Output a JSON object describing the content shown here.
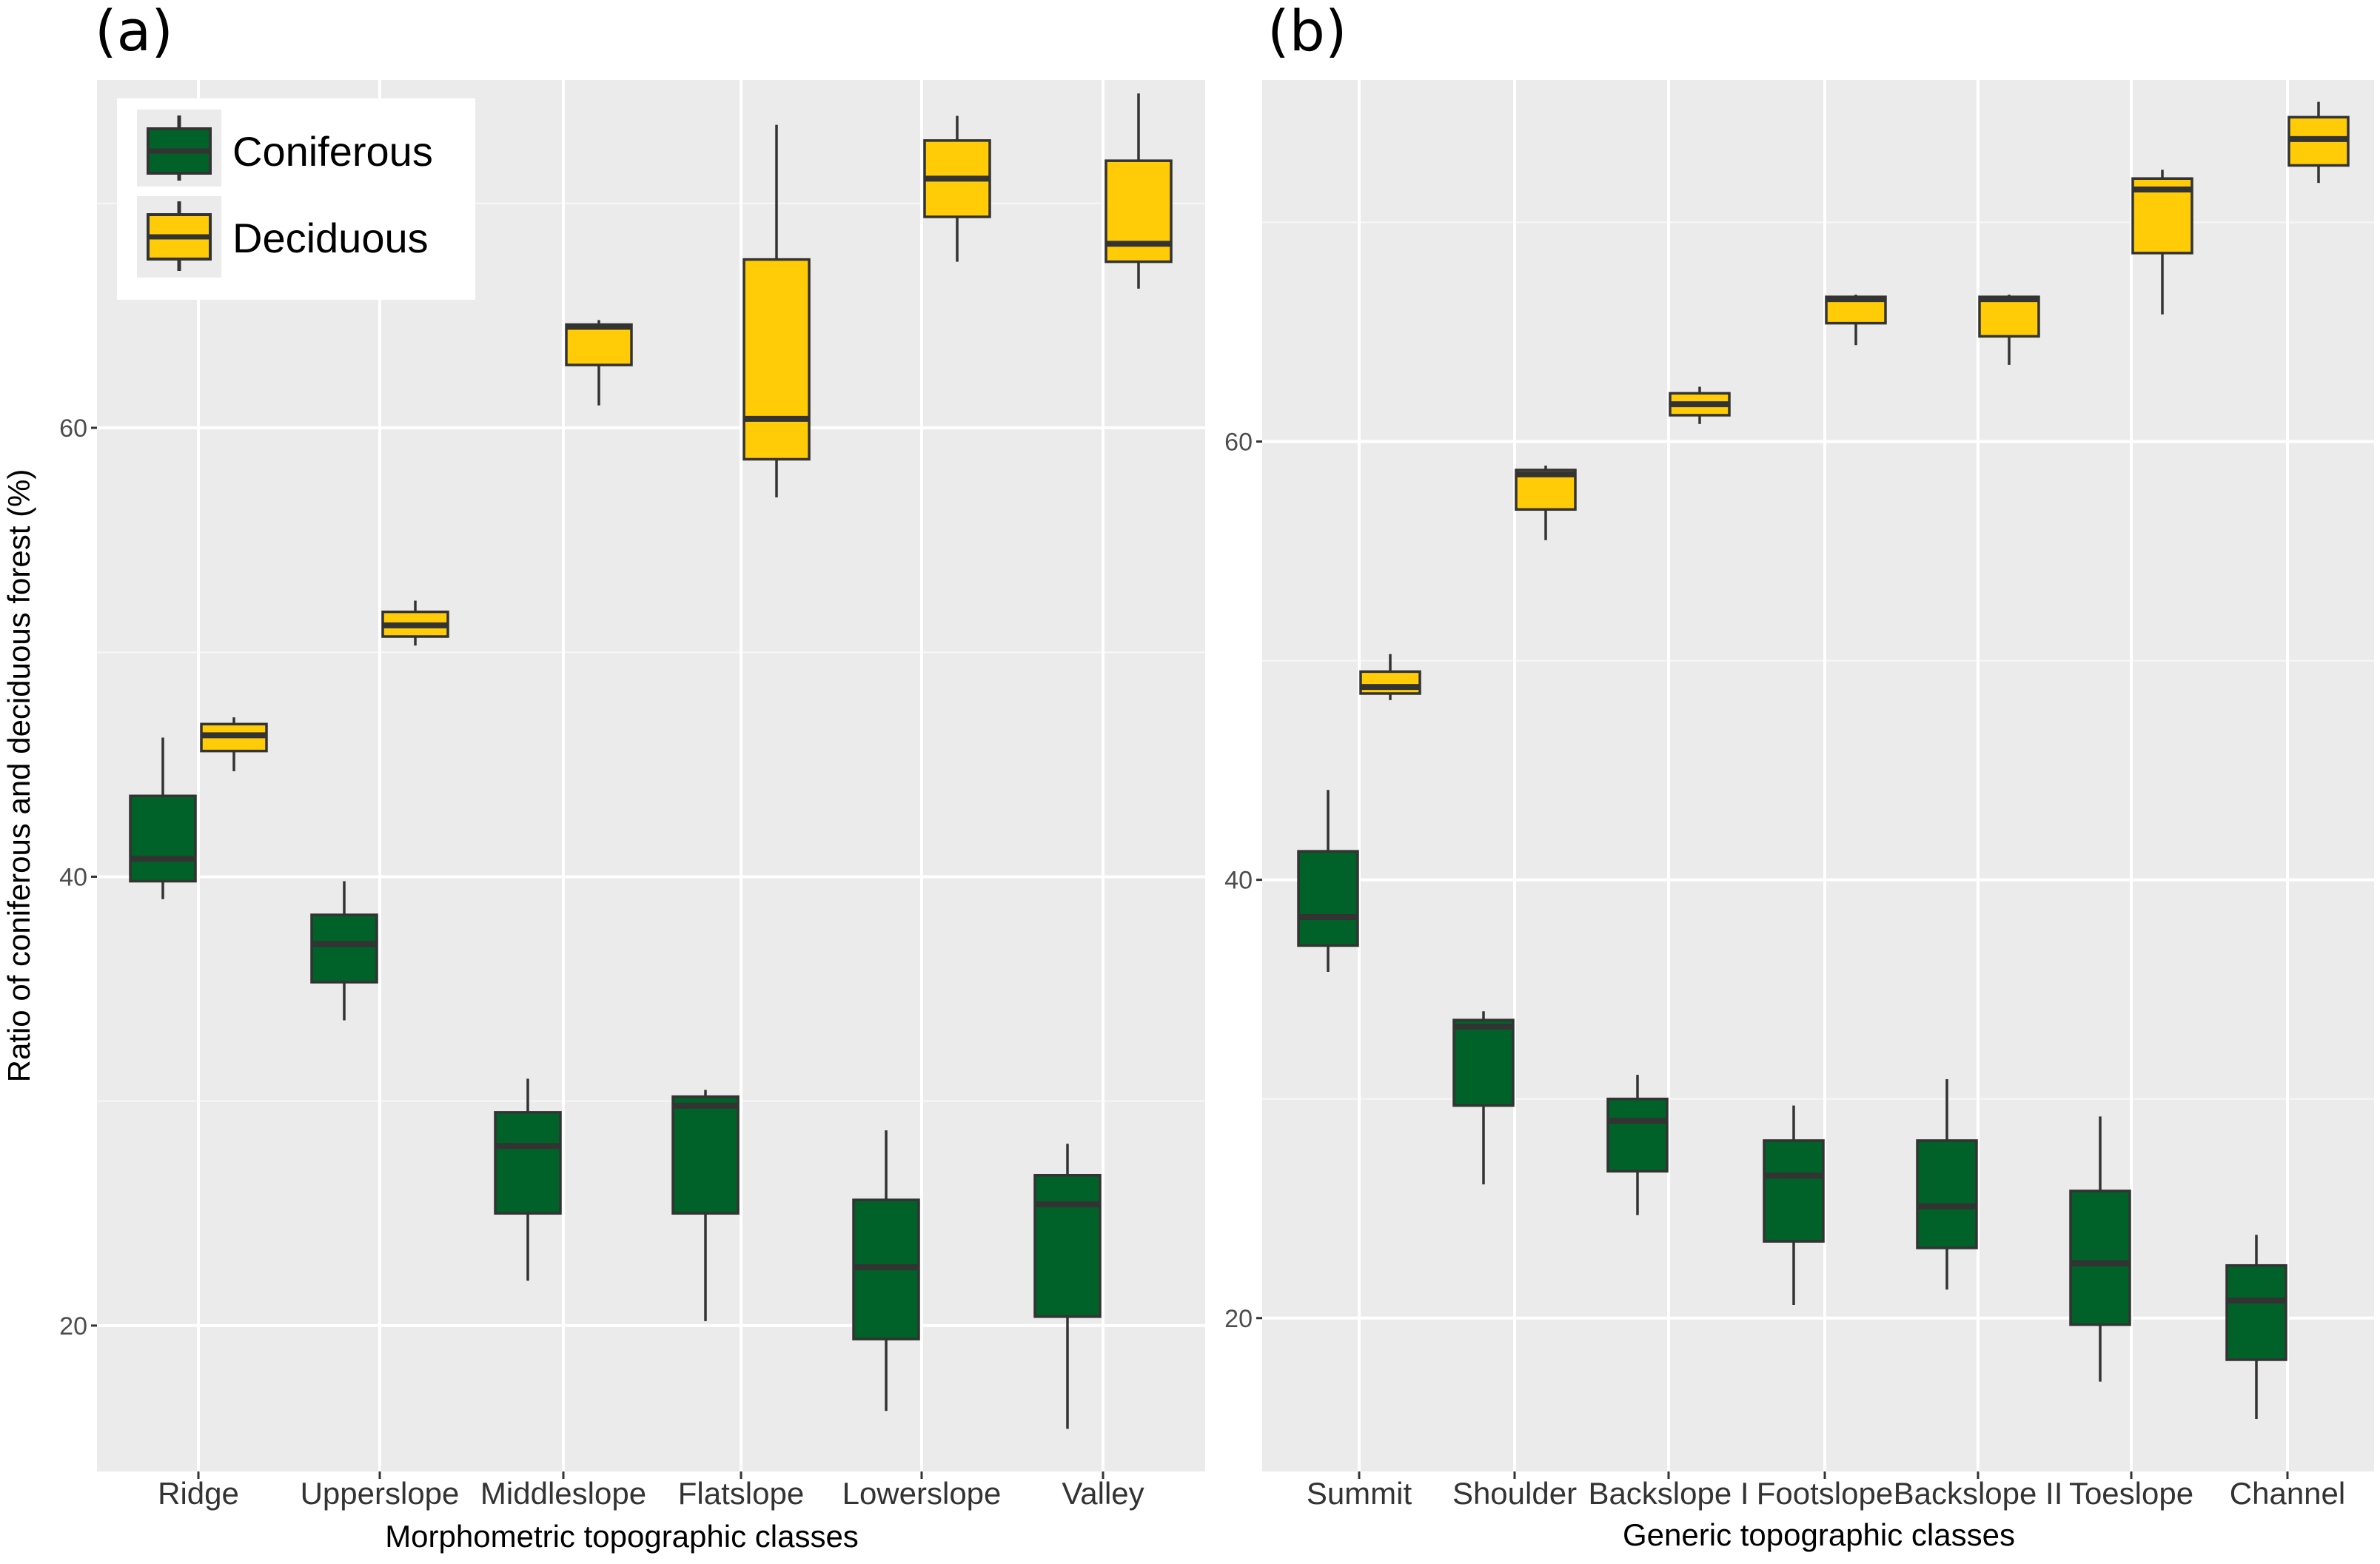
{
  "ylabel": "Ratio of coniferous and deciduous forest (%)",
  "legend": {
    "placement": "top-left inside panel (a)",
    "items": [
      {
        "label": "Coniferous",
        "color": "#006228"
      },
      {
        "label": "Deciduous",
        "color": "#ffcc07"
      }
    ]
  },
  "chart_data": [
    {
      "type": "boxplot",
      "panel": "(a)",
      "xlabel": "Morphometric topographic classes",
      "ylim": [
        13.5,
        75.5
      ],
      "yticks": [
        20,
        40,
        60
      ],
      "grid": true,
      "categories": [
        "Ridge",
        "Upperslope",
        "Middleslope",
        "Flatslope",
        "Lowerslope",
        "Valley"
      ],
      "series": [
        {
          "name": "Coniferous",
          "color": "#006228",
          "boxes": [
            {
              "min": 39.0,
              "q1": 39.8,
              "median": 40.8,
              "q3": 43.6,
              "max": 46.2
            },
            {
              "min": 33.6,
              "q1": 35.3,
              "median": 37.0,
              "q3": 38.3,
              "max": 39.8
            },
            {
              "min": 22.0,
              "q1": 25.0,
              "median": 28.0,
              "q3": 29.5,
              "max": 31.0
            },
            {
              "min": 20.2,
              "q1": 25.0,
              "median": 29.8,
              "q3": 30.2,
              "max": 30.5
            },
            {
              "min": 16.2,
              "q1": 19.4,
              "median": 22.6,
              "q3": 25.6,
              "max": 28.7
            },
            {
              "min": 15.4,
              "q1": 20.4,
              "median": 25.4,
              "q3": 26.7,
              "max": 28.1
            }
          ]
        },
        {
          "name": "Deciduous",
          "color": "#ffcc07",
          "boxes": [
            {
              "min": 44.7,
              "q1": 45.6,
              "median": 46.3,
              "q3": 46.8,
              "max": 47.1
            },
            {
              "min": 50.3,
              "q1": 50.7,
              "median": 51.2,
              "q3": 51.8,
              "max": 52.3
            },
            {
              "min": 61.0,
              "q1": 62.8,
              "median": 64.5,
              "q3": 64.6,
              "max": 64.8
            },
            {
              "min": 56.9,
              "q1": 58.6,
              "median": 60.4,
              "q3": 67.5,
              "max": 73.5
            },
            {
              "min": 67.4,
              "q1": 69.4,
              "median": 71.1,
              "q3": 72.8,
              "max": 73.9
            },
            {
              "min": 66.2,
              "q1": 67.4,
              "median": 68.2,
              "q3": 71.9,
              "max": 74.9
            }
          ]
        }
      ]
    },
    {
      "type": "boxplot",
      "panel": "(b)",
      "xlabel": "Generic topographic classes",
      "ylim": [
        13.0,
        76.5
      ],
      "yticks": [
        20,
        40,
        60
      ],
      "grid": true,
      "categories": [
        "Summit",
        "Shoulder",
        "Backslope I",
        "Footslope",
        "Backslope II",
        "Toeslope",
        "Channel"
      ],
      "series": [
        {
          "name": "Coniferous",
          "color": "#006228",
          "boxes": [
            {
              "min": 35.8,
              "q1": 37.0,
              "median": 38.3,
              "q3": 41.3,
              "max": 44.1
            },
            {
              "min": 26.1,
              "q1": 29.7,
              "median": 33.3,
              "q3": 33.6,
              "max": 34.0
            },
            {
              "min": 24.7,
              "q1": 26.7,
              "median": 29.0,
              "q3": 30.0,
              "max": 31.1
            },
            {
              "min": 20.6,
              "q1": 23.5,
              "median": 26.5,
              "q3": 28.1,
              "max": 29.7
            },
            {
              "min": 21.3,
              "q1": 23.2,
              "median": 25.1,
              "q3": 28.1,
              "max": 30.9
            },
            {
              "min": 17.1,
              "q1": 19.7,
              "median": 22.5,
              "q3": 25.8,
              "max": 29.2
            },
            {
              "min": 15.4,
              "q1": 18.1,
              "median": 20.8,
              "q3": 22.4,
              "max": 23.8
            }
          ]
        },
        {
          "name": "Deciduous",
          "color": "#ffcc07",
          "boxes": [
            {
              "min": 48.2,
              "q1": 48.5,
              "median": 48.8,
              "q3": 49.5,
              "max": 50.3
            },
            {
              "min": 55.5,
              "q1": 56.9,
              "median": 58.5,
              "q3": 58.7,
              "max": 58.9
            },
            {
              "min": 60.8,
              "q1": 61.2,
              "median": 61.7,
              "q3": 62.2,
              "max": 62.5
            },
            {
              "min": 64.4,
              "q1": 65.4,
              "median": 66.5,
              "q3": 66.6,
              "max": 66.7
            },
            {
              "min": 63.5,
              "q1": 64.8,
              "median": 66.5,
              "q3": 66.6,
              "max": 66.7
            },
            {
              "min": 65.8,
              "q1": 68.6,
              "median": 71.5,
              "q3": 72.0,
              "max": 72.4
            },
            {
              "min": 71.8,
              "q1": 72.6,
              "median": 73.8,
              "q3": 74.8,
              "max": 75.5
            }
          ]
        }
      ]
    }
  ]
}
